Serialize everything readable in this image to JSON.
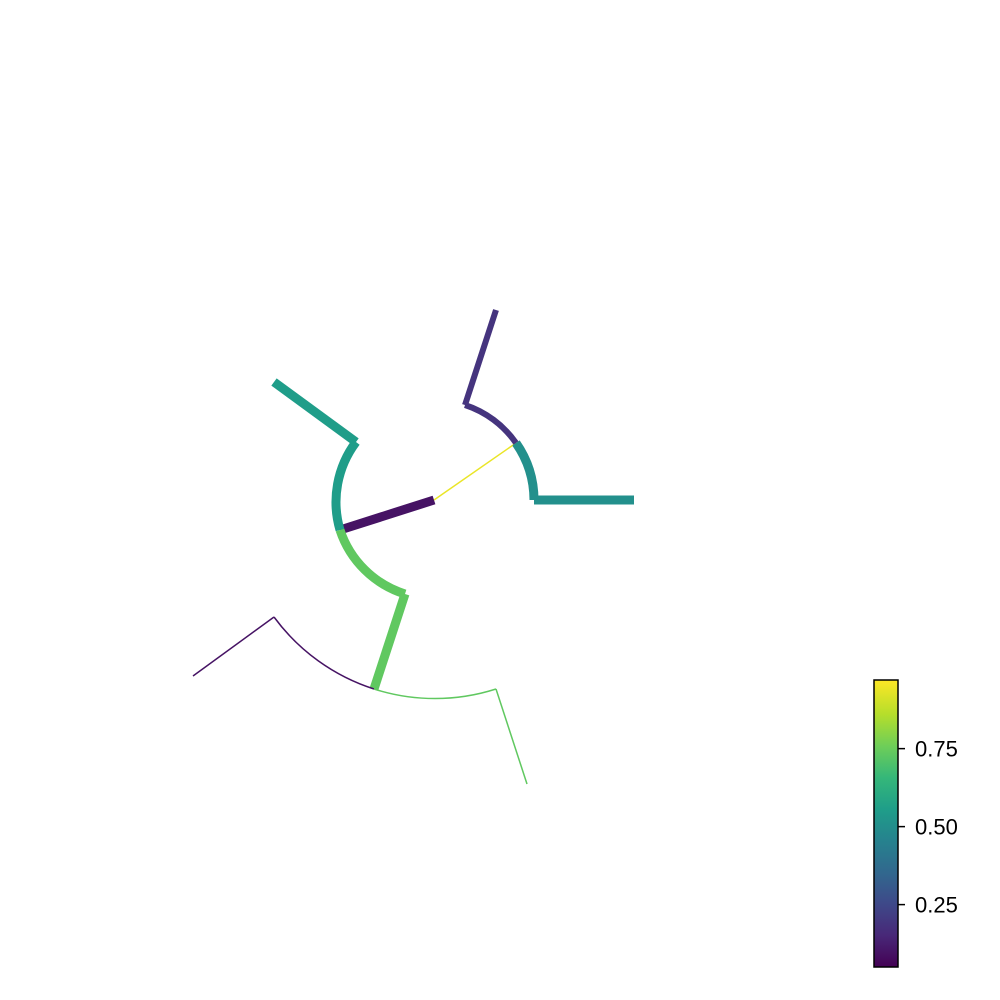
{
  "diagram": {
    "type": "radial-tree",
    "edge_color_scale": "viridis",
    "edges": [
      {
        "id": "root-right",
        "value": 0.97,
        "weight": "thin"
      },
      {
        "id": "root-left",
        "value": 0.05,
        "weight": "thick"
      },
      {
        "id": "left-upper",
        "value": 0.55,
        "weight": "thick"
      },
      {
        "id": "left-upper-leaf",
        "value": 0.55,
        "weight": "thick"
      },
      {
        "id": "left-lower",
        "value": 0.75,
        "weight": "thick"
      },
      {
        "id": "left-lower-stem",
        "value": 0.75,
        "weight": "thick"
      },
      {
        "id": "bottom-left",
        "value": 0.05,
        "weight": "thin"
      },
      {
        "id": "bottom-left-leaf",
        "value": 0.05,
        "weight": "thin"
      },
      {
        "id": "bottom-right",
        "value": 0.75,
        "weight": "thin"
      },
      {
        "id": "bottom-right-leaf",
        "value": 0.75,
        "weight": "thin"
      },
      {
        "id": "right-upper",
        "value": 0.15,
        "weight": "medium"
      },
      {
        "id": "right-upper-leaf",
        "value": 0.15,
        "weight": "medium"
      },
      {
        "id": "right-lower",
        "value": 0.5,
        "weight": "thick"
      },
      {
        "id": "right-lower-leaf",
        "value": 0.5,
        "weight": "thick"
      }
    ]
  },
  "colorbar": {
    "min": 0.05,
    "max": 0.97,
    "ticks": [
      {
        "value": 0.25,
        "label": "0.25"
      },
      {
        "value": 0.5,
        "label": "0.50"
      },
      {
        "value": 0.75,
        "label": "0.75"
      }
    ]
  },
  "colors": {
    "viridis_stops": [
      "#440154",
      "#482878",
      "#3e4989",
      "#31688e",
      "#26828e",
      "#1f9e89",
      "#35b779",
      "#6ece58",
      "#b5de2b",
      "#fde725"
    ]
  }
}
